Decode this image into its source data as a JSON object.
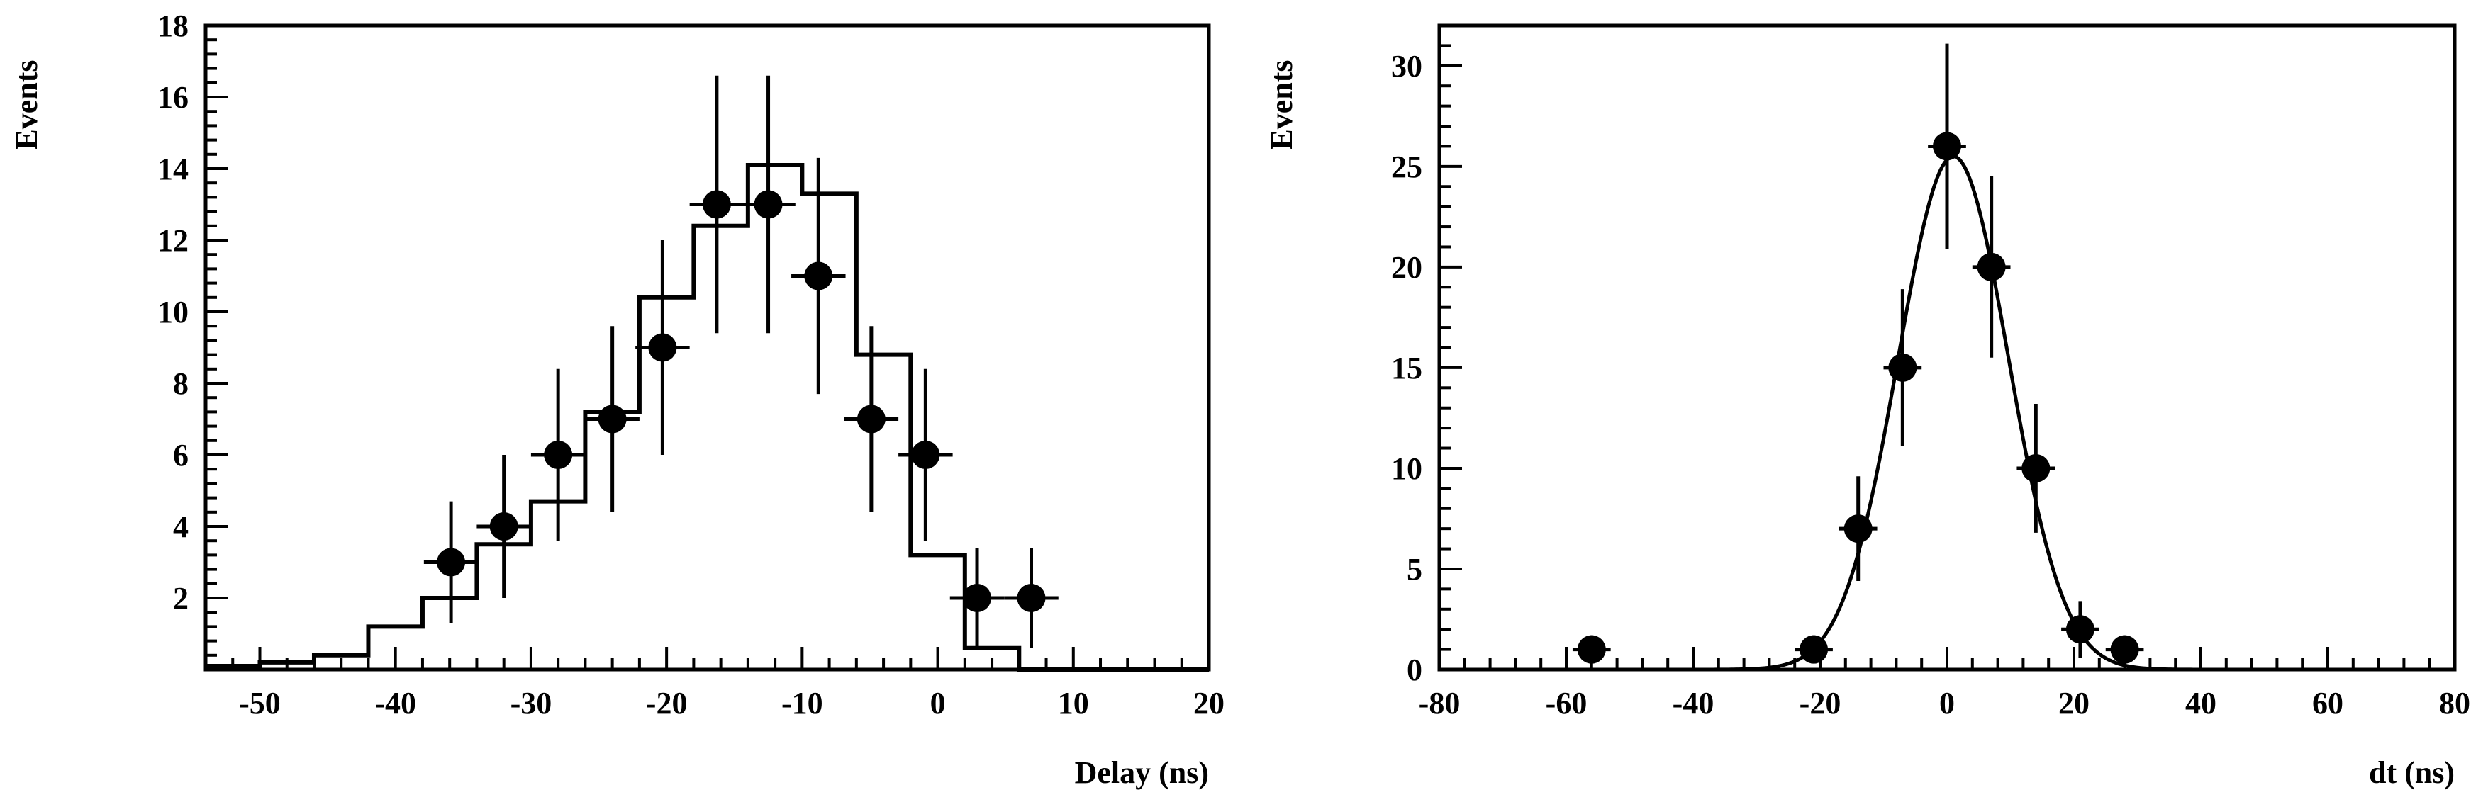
{
  "colors": {
    "ink": "#000000",
    "background": "#ffffff"
  },
  "chart_data": [
    {
      "type": "scatter",
      "title": "",
      "xlabel": "Delay (ns)",
      "ylabel": "Events",
      "xlim": [
        -54,
        20
      ],
      "ylim": [
        0,
        18
      ],
      "xticks": [
        -50,
        -40,
        -30,
        -20,
        -10,
        0,
        10,
        20
      ],
      "yticks": [
        2,
        4,
        6,
        8,
        10,
        12,
        14,
        16,
        18
      ],
      "grid": false,
      "series": [
        {
          "kind": "points-with-errors",
          "x": [
            -35.9,
            -32.0,
            -28.0,
            -24.0,
            -20.3,
            -16.3,
            -12.5,
            -8.8,
            -4.9,
            -0.9,
            2.9,
            6.9
          ],
          "y": [
            3,
            4,
            6,
            7,
            9,
            13,
            13,
            11,
            7,
            6,
            2,
            2
          ],
          "xerr": 2,
          "yerr_low": [
            1.7,
            2.0,
            2.4,
            2.6,
            3.0,
            3.6,
            3.6,
            3.3,
            2.6,
            2.4,
            1.4,
            1.4
          ],
          "yerr_high": [
            1.7,
            2.0,
            2.4,
            2.6,
            3.0,
            3.6,
            3.6,
            3.3,
            2.6,
            2.4,
            1.4,
            1.4
          ]
        },
        {
          "kind": "step-histogram",
          "edges": [
            -54,
            -50,
            -46,
            -42,
            -38,
            -34,
            -30,
            -26,
            -22,
            -18,
            -14,
            -10,
            -6,
            -2,
            2,
            6,
            10,
            20
          ],
          "values": [
            0.1,
            0.2,
            0.4,
            1.2,
            2.0,
            3.5,
            4.7,
            7.2,
            10.4,
            12.4,
            14.1,
            13.3,
            8.8,
            3.2,
            0.6,
            0.0,
            0.0
          ]
        }
      ]
    },
    {
      "type": "scatter",
      "title": "",
      "xlabel": "dt (ns)",
      "ylabel": "Events",
      "xlim": [
        -80,
        80
      ],
      "ylim": [
        0,
        32
      ],
      "xticks": [
        -80,
        -60,
        -40,
        -20,
        0,
        20,
        40,
        60,
        80
      ],
      "yticks": [
        0,
        5,
        10,
        15,
        20,
        25,
        30
      ],
      "grid": false,
      "series": [
        {
          "kind": "points-with-errors",
          "x": [
            -56,
            -21,
            -14,
            -7,
            0,
            7,
            14,
            21,
            28
          ],
          "y": [
            1,
            1,
            7,
            15,
            26,
            20,
            10,
            2,
            1
          ],
          "xerr": 3,
          "yerr_low": [
            0.7,
            0.7,
            2.6,
            3.9,
            5.1,
            4.5,
            3.2,
            1.4,
            0.7
          ],
          "yerr_high": [
            0.7,
            0.7,
            2.6,
            3.9,
            5.1,
            4.5,
            3.2,
            1.4,
            0.7
          ]
        },
        {
          "kind": "gaussian-fit",
          "amplitude": 25.5,
          "mean": 1.0,
          "sigma": 8.7
        }
      ]
    }
  ]
}
